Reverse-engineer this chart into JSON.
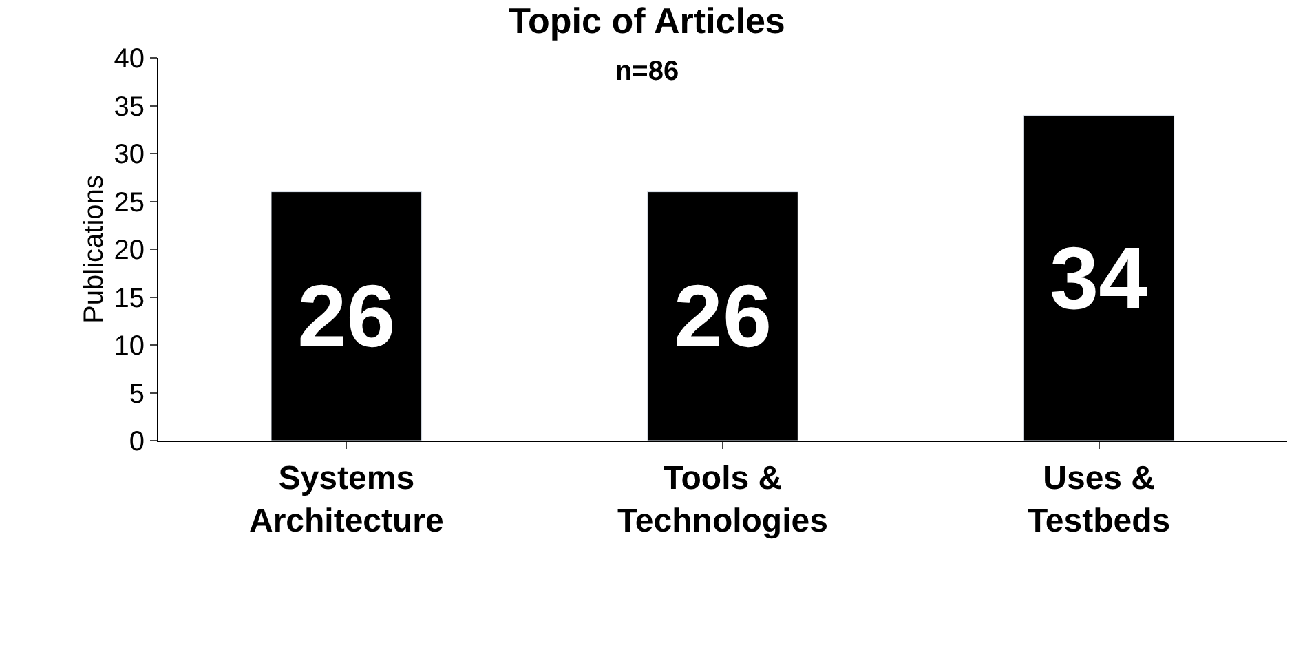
{
  "chart_data": {
    "type": "bar",
    "title": "Topic of Articles",
    "subtitle": "n=86",
    "ylabel": "Publications",
    "categories": [
      "Systems Architecture",
      "Tools & Technologies",
      "Uses & Testbeds"
    ],
    "values": [
      26,
      26,
      34
    ],
    "color": "#000000",
    "ylim": [
      0,
      40
    ],
    "yticks": [
      0,
      5,
      10,
      15,
      20,
      25,
      30,
      35,
      40
    ],
    "legend": false,
    "data_labels": true
  }
}
